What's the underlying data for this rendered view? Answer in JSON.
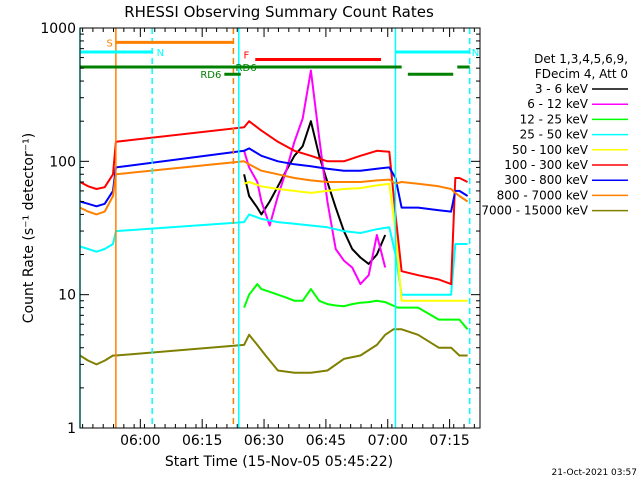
{
  "chart_data": {
    "type": "line",
    "title": "RHESSI Observing Summary Count Rates",
    "xlabel": "Start Time (15-Nov-05 05:45:22)",
    "ylabel": "Count Rate (s⁻¹ detector⁻¹)",
    "yscale": "log",
    "xlim_minutes_after_start": [
      0,
      97
    ],
    "ylim": [
      1,
      1000
    ],
    "x_tick_labels": [
      "06:00",
      "06:15",
      "06:30",
      "06:45",
      "07:00",
      "07:15"
    ],
    "x_tick_minutes": [
      14.63,
      29.63,
      44.63,
      59.63,
      74.63,
      89.63
    ],
    "y_tick_labels": [
      "1",
      "10",
      "100",
      "1000"
    ],
    "y_tick_values": [
      1,
      10,
      100,
      1000
    ],
    "grid": false,
    "legend_position": "right",
    "legend_header": [
      "Det 1,3,4,5,6,9,",
      "FDecim 4, Att 0"
    ],
    "footer": "21-Oct-2021 03:57",
    "series": [
      {
        "name": "3 - 6 keV",
        "color": "#000000",
        "x": [
          39.8,
          41,
          43,
          44,
          46,
          48,
          50,
          52,
          54,
          56,
          58,
          60,
          62,
          64,
          66,
          68,
          70,
          72,
          74
        ],
        "values": [
          80,
          55,
          45,
          40,
          50,
          65,
          85,
          110,
          130,
          200,
          110,
          70,
          45,
          30,
          22,
          19,
          17,
          20,
          28
        ]
      },
      {
        "name": "6 - 12 keV",
        "color": "#ff00ff",
        "x": [
          39.8,
          41,
          43,
          44,
          46,
          48,
          50,
          52,
          54,
          56,
          58,
          60,
          62,
          64,
          66,
          68,
          70,
          72,
          74
        ],
        "values": [
          120,
          90,
          70,
          50,
          33,
          55,
          85,
          140,
          210,
          480,
          150,
          50,
          22,
          18,
          16,
          12,
          14,
          28,
          16
        ]
      },
      {
        "name": "12 - 25 keV",
        "color": "#00ff00",
        "x": [
          39.8,
          41,
          43,
          44,
          46,
          48,
          50,
          52,
          54,
          56,
          58,
          60,
          62,
          64,
          66,
          68,
          70,
          72,
          74,
          77,
          82,
          87,
          90,
          92,
          94
        ],
        "values": [
          8,
          10,
          12,
          11,
          10.5,
          10,
          9.5,
          9,
          9,
          11,
          9,
          8.5,
          8.3,
          8.2,
          8.5,
          8.7,
          8.8,
          9,
          8.8,
          8,
          8,
          6.5,
          6.5,
          6.5,
          5.5
        ]
      },
      {
        "name": "25 - 50 keV",
        "color": "#00ffff",
        "x": [
          0,
          2,
          4,
          6,
          8,
          8.7,
          39.8,
          41,
          44,
          48,
          52,
          56,
          60,
          64,
          68,
          72,
          75,
          76.5,
          78,
          82,
          87,
          90,
          91,
          92,
          94
        ],
        "values": [
          23,
          22,
          21,
          22,
          24,
          30,
          35,
          40,
          37,
          35,
          34,
          33,
          32,
          30,
          29,
          31,
          32,
          20,
          10,
          10,
          10,
          10,
          24,
          24,
          24
        ]
      },
      {
        "name": "50 - 100 keV",
        "color": "#ffff00",
        "x": [
          39.8,
          41,
          44,
          48,
          52,
          56,
          60,
          64,
          68,
          72,
          75,
          76.5,
          78,
          82,
          87,
          90,
          91,
          94
        ],
        "values": [
          68,
          70,
          65,
          62,
          60,
          58,
          60,
          62,
          63,
          66,
          68,
          30,
          9,
          9,
          9,
          9,
          9,
          9
        ]
      },
      {
        "name": "100 - 300 keV",
        "color": "#ff0000",
        "x": [
          0,
          2,
          4,
          6,
          8,
          8.7,
          39.8,
          41,
          44,
          48,
          52,
          56,
          60,
          64,
          68,
          72,
          75,
          76.5,
          78,
          82,
          87,
          90,
          91,
          92,
          94
        ],
        "values": [
          70,
          65,
          62,
          64,
          80,
          140,
          180,
          200,
          170,
          140,
          120,
          110,
          100,
          100,
          110,
          120,
          118,
          40,
          15,
          14,
          13,
          12,
          75,
          75,
          70
        ]
      },
      {
        "name": "300 - 800 keV",
        "color": "#0000ff",
        "x": [
          0,
          2,
          4,
          6,
          8,
          8.7,
          39.8,
          41,
          44,
          48,
          52,
          56,
          60,
          64,
          68,
          72,
          75,
          76.5,
          78,
          82,
          87,
          90,
          91,
          92,
          94
        ],
        "values": [
          50,
          48,
          46,
          48,
          60,
          90,
          120,
          125,
          110,
          100,
          95,
          92,
          88,
          85,
          85,
          88,
          90,
          75,
          45,
          45,
          43,
          42,
          60,
          60,
          55
        ]
      },
      {
        "name": "800 - 7000 keV",
        "color": "#ff8000",
        "x": [
          0,
          2,
          4,
          6,
          8,
          8.7,
          39.8,
          41,
          44,
          48,
          52,
          56,
          60,
          64,
          68,
          72,
          75,
          76.5,
          78,
          82,
          87,
          90,
          91,
          92,
          94
        ],
        "values": [
          45,
          42,
          40,
          42,
          55,
          80,
          100,
          95,
          85,
          80,
          75,
          72,
          70,
          70,
          70,
          72,
          73,
          68,
          70,
          68,
          65,
          62,
          58,
          55,
          50
        ]
      },
      {
        "name": "7000 - 15000 keV",
        "color": "#808000",
        "x": [
          0,
          2,
          4,
          6,
          8,
          8.7,
          39.8,
          41,
          43,
          45,
          48,
          52,
          56,
          60,
          64,
          68,
          72,
          74,
          76,
          78,
          82,
          87,
          90,
          92,
          94
        ],
        "values": [
          3.5,
          3.2,
          3.0,
          3.2,
          3.5,
          3.5,
          4.2,
          5,
          4.2,
          3.5,
          2.7,
          2.6,
          2.6,
          2.7,
          3.3,
          3.5,
          4.2,
          5,
          5.5,
          5.5,
          5,
          4,
          4,
          3.5,
          3.5
        ]
      }
    ],
    "annotations": [
      {
        "label": "S",
        "color": "#ff8000",
        "x_start": 8.7,
        "x_end": 37.2,
        "y": 780
      },
      {
        "label": "N",
        "color": "#00ffff",
        "x_start": 0,
        "x_end": 17.5,
        "y": 660
      },
      {
        "label": "N",
        "color": "#00ffff",
        "x_start": 76.5,
        "x_end": 94.5,
        "y": 660
      },
      {
        "label": "F",
        "color": "#ff0000",
        "x_start": 42.5,
        "x_end": 73,
        "y": 580
      },
      {
        "label": "RD6",
        "color": "#008000",
        "x_start": 0,
        "x_end": 78,
        "y": 510
      },
      {
        "label": "RD6",
        "color": "#008000",
        "x_start": 35,
        "x_end": 39,
        "y": 450
      },
      {
        "label": "",
        "color": "#008000",
        "x_start": 79.5,
        "x_end": 90.5,
        "y": 450
      },
      {
        "label": "",
        "color": "#008000",
        "x_start": 91.5,
        "x_end": 94.5,
        "y": 510
      }
    ],
    "vertical_markers": [
      {
        "x": 0,
        "color": "#00ffff",
        "style": "solid"
      },
      {
        "x": 8.7,
        "color": "#ff8000",
        "style": "solid"
      },
      {
        "x": 17.5,
        "color": "#00ffff",
        "style": "dashed"
      },
      {
        "x": 37.2,
        "color": "#ff8000",
        "style": "dashed"
      },
      {
        "x": 38.5,
        "color": "#00ffff",
        "style": "solid"
      },
      {
        "x": 76.5,
        "color": "#00ffff",
        "style": "solid"
      },
      {
        "x": 94.5,
        "color": "#00ffff",
        "style": "dashed"
      }
    ]
  }
}
